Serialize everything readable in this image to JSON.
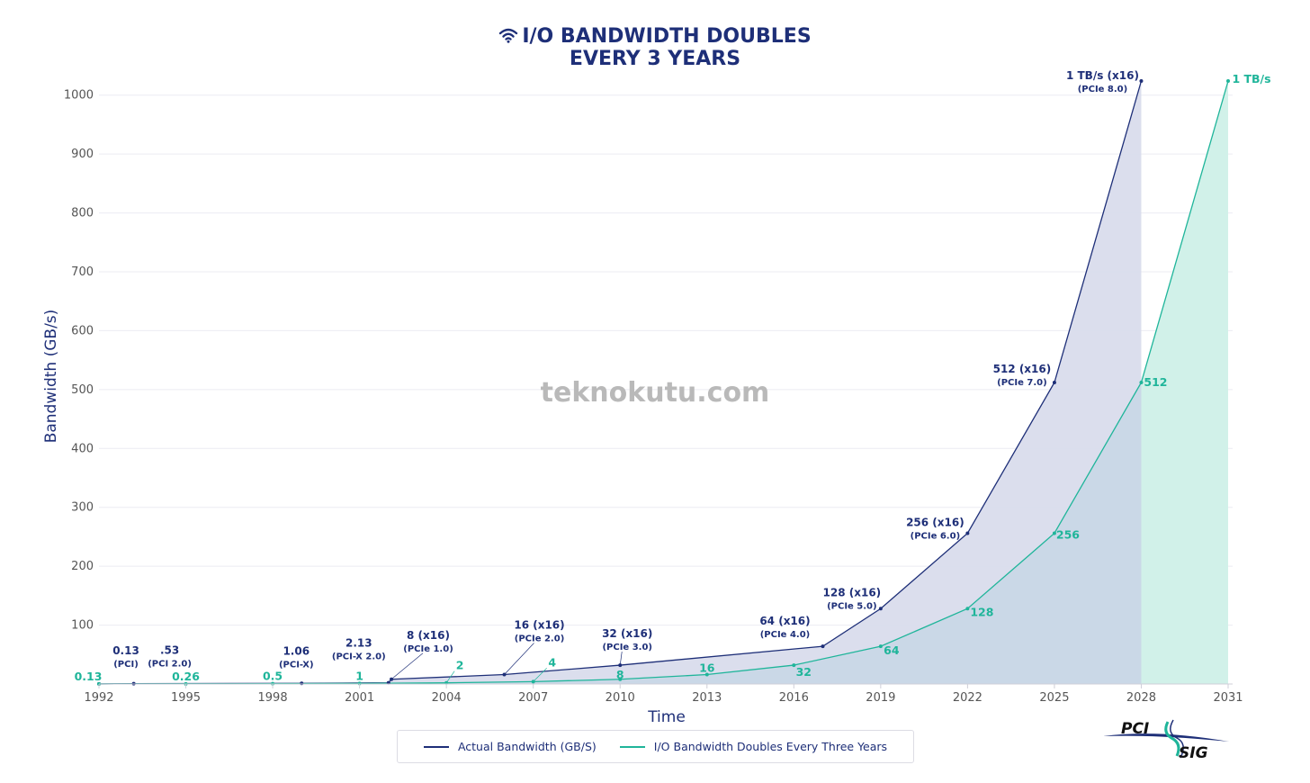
{
  "title": {
    "line1": "I/O BANDWIDTH DOUBLES",
    "line2": "EVERY 3 YEARS",
    "icon": "wifi-icon"
  },
  "watermark": "teknokutu.com",
  "logo": {
    "top": "PCI",
    "bottom": "SIG"
  },
  "colors": {
    "actual": "#1e2f78",
    "actual_fill": "#d9dcec",
    "trend": "#1fb59a",
    "trend_fill": "#d1f1e9",
    "overlap_fill": "#c7d7e6"
  },
  "chart_data": {
    "type": "area",
    "xlabel": "Time",
    "ylabel": "Bandwidth (GB/s)",
    "xlim": [
      1992,
      2031
    ],
    "ylim": [
      0,
      1024
    ],
    "x_ticks": [
      1992,
      1995,
      1998,
      2001,
      2004,
      2007,
      2010,
      2013,
      2016,
      2019,
      2022,
      2025,
      2028,
      2031
    ],
    "y_ticks": [
      100,
      200,
      300,
      400,
      500,
      600,
      700,
      800,
      900,
      1000
    ],
    "grid": true,
    "legend_placement": "bottom-center",
    "series": [
      {
        "name": "Actual Bandwidth (GB/S)",
        "points": [
          {
            "x": 1992,
            "y": 0.13,
            "label": "0.13",
            "sub": "(PCI)"
          },
          {
            "x": 1993.2,
            "y": 0.53,
            "label": ".53",
            "sub": "(PCI 2.0)"
          },
          {
            "x": 1999,
            "y": 1.06,
            "label": "1.06",
            "sub": "(PCI-X)"
          },
          {
            "x": 2002,
            "y": 2.13,
            "label": "2.13",
            "sub": "(PCI-X 2.0)"
          },
          {
            "x": 2002.1,
            "y": 8,
            "label": "8 (x16)",
            "sub": "(PCIe 1.0)"
          },
          {
            "x": 2006,
            "y": 16,
            "label": "16 (x16)",
            "sub": "(PCIe 2.0)"
          },
          {
            "x": 2010,
            "y": 32,
            "label": "32 (x16)",
            "sub": "(PCIe 3.0)"
          },
          {
            "x": 2017,
            "y": 64,
            "label": "64 (x16)",
            "sub": "(PCIe 4.0)"
          },
          {
            "x": 2019,
            "y": 128,
            "label": "128 (x16)",
            "sub": "(PCIe 5.0)"
          },
          {
            "x": 2022,
            "y": 256,
            "label": "256 (x16)",
            "sub": "(PCIe 6.0)"
          },
          {
            "x": 2025,
            "y": 512,
            "label": "512 (x16)",
            "sub": "(PCIe 7.0)"
          },
          {
            "x": 2028,
            "y": 1024,
            "label": "1 TB/s (x16)",
            "sub": "(PCIe 8.0)"
          }
        ]
      },
      {
        "name": "I/O Bandwidth Doubles Every Three Years",
        "points": [
          {
            "x": 1992,
            "y": 0.13,
            "label": "0.13"
          },
          {
            "x": 1995,
            "y": 0.26,
            "label": "0.26"
          },
          {
            "x": 1998,
            "y": 0.5,
            "label": "0.5"
          },
          {
            "x": 2001,
            "y": 1,
            "label": "1"
          },
          {
            "x": 2004,
            "y": 2,
            "label": "2"
          },
          {
            "x": 2007,
            "y": 4,
            "label": "4"
          },
          {
            "x": 2010,
            "y": 8,
            "label": "8"
          },
          {
            "x": 2013,
            "y": 16,
            "label": "16"
          },
          {
            "x": 2016,
            "y": 32,
            "label": "32"
          },
          {
            "x": 2019,
            "y": 64,
            "label": "64"
          },
          {
            "x": 2022,
            "y": 128,
            "label": "128"
          },
          {
            "x": 2025,
            "y": 256,
            "label": "256"
          },
          {
            "x": 2028,
            "y": 512,
            "label": "512"
          },
          {
            "x": 2031,
            "y": 1024,
            "label": "1 TB/s"
          }
        ]
      }
    ]
  }
}
